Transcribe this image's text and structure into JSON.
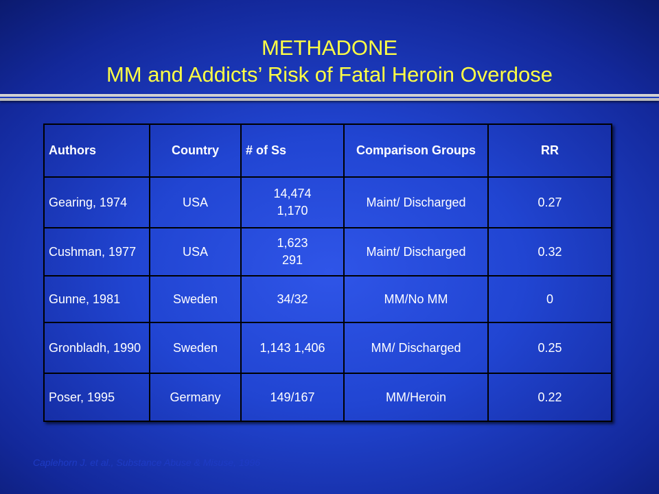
{
  "slide": {
    "title_line1": "METHADONE",
    "title_line2": "MM and Addicts’ Risk of Fatal Heroin Overdose",
    "citation": "Caplehorn J. et al., Substance Abuse & Misuse, 1996"
  },
  "table": {
    "headers": [
      "Authors",
      "Country",
      "# of Ss",
      "Comparison Groups",
      "RR"
    ],
    "rows": [
      {
        "authors": "Gearing, 1974",
        "country": "USA",
        "ss": [
          "14,474",
          "1,170"
        ],
        "groups": "Maint/ Discharged",
        "rr": "0.27"
      },
      {
        "authors": "Cushman, 1977",
        "country": "USA",
        "ss": [
          "1,623",
          "291"
        ],
        "groups": "Maint/ Discharged",
        "rr": "0.32"
      },
      {
        "authors": "Gunne, 1981",
        "country": "Sweden",
        "ss": [
          "34/32"
        ],
        "groups": "MM/No MM",
        "rr": "0"
      },
      {
        "authors": "Gronbladh, 1990",
        "country": "Sweden",
        "ss": [
          "1,143 1,406"
        ],
        "groups": "MM/ Discharged",
        "rr": "0.25"
      },
      {
        "authors": "Poser, 1995",
        "country": "Germany",
        "ss": [
          "149/167"
        ],
        "groups": "MM/Heroin",
        "rr": "0.22"
      }
    ]
  },
  "colors": {
    "title": "#ffff44",
    "table_text": "#ffffff",
    "background": "#2145d2",
    "citation": "#1e3bc4"
  }
}
